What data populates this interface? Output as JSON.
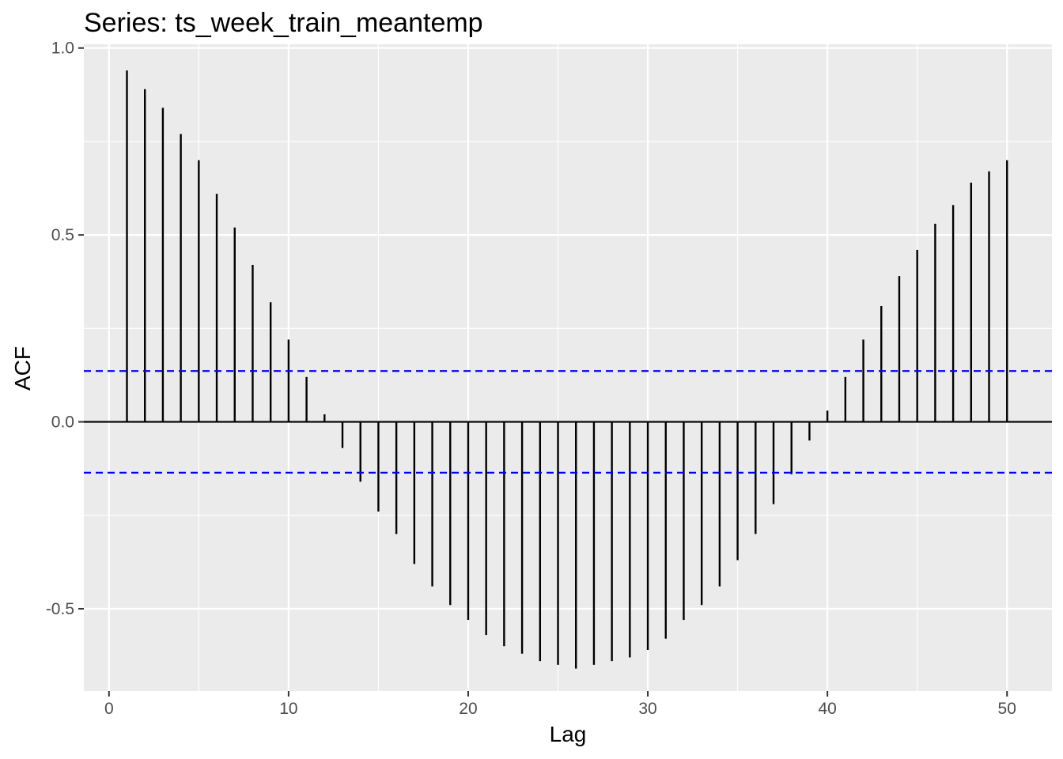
{
  "chart_data": {
    "type": "bar",
    "title": "Series: ts_week_train_meantemp",
    "xlabel": "Lag",
    "ylabel": "ACF",
    "xlim": [
      -1.4,
      52.5
    ],
    "ylim": [
      -0.72,
      1.01
    ],
    "x_ticks": [
      0,
      10,
      20,
      30,
      40,
      50
    ],
    "x_tick_labels": [
      "0",
      "10",
      "20",
      "30",
      "40",
      "50"
    ],
    "y_ticks": [
      1.0,
      0.5,
      0.0,
      -0.5
    ],
    "y_tick_labels": [
      "1.0",
      "0.5",
      "0.0",
      "-0.5"
    ],
    "grid": true,
    "lags": [
      1,
      2,
      3,
      4,
      5,
      6,
      7,
      8,
      9,
      10,
      11,
      12,
      13,
      14,
      15,
      16,
      17,
      18,
      19,
      20,
      21,
      22,
      23,
      24,
      25,
      26,
      27,
      28,
      29,
      30,
      31,
      32,
      33,
      34,
      35,
      36,
      37,
      38,
      39,
      40,
      41,
      42,
      43,
      44,
      45,
      46,
      47,
      48,
      49,
      50
    ],
    "acf": [
      0.94,
      0.89,
      0.84,
      0.77,
      0.7,
      0.61,
      0.52,
      0.42,
      0.32,
      0.22,
      0.12,
      0.02,
      -0.07,
      -0.16,
      -0.24,
      -0.3,
      -0.38,
      -0.44,
      -0.49,
      -0.53,
      -0.57,
      -0.6,
      -0.62,
      -0.64,
      -0.65,
      -0.66,
      -0.65,
      -0.64,
      -0.63,
      -0.61,
      -0.58,
      -0.53,
      -0.49,
      -0.44,
      -0.37,
      -0.3,
      -0.22,
      -0.14,
      -0.05,
      0.03,
      0.12,
      0.22,
      0.31,
      0.39,
      0.46,
      0.53,
      0.58,
      0.64,
      0.67,
      0.7
    ],
    "confidence_band": [
      0.136,
      -0.136
    ],
    "colors": {
      "panel_background": "#ebebeb",
      "grid": "#ffffff",
      "bars": "#000000",
      "confidence_lines": "#0000ff",
      "zero_line": "#000000"
    }
  }
}
